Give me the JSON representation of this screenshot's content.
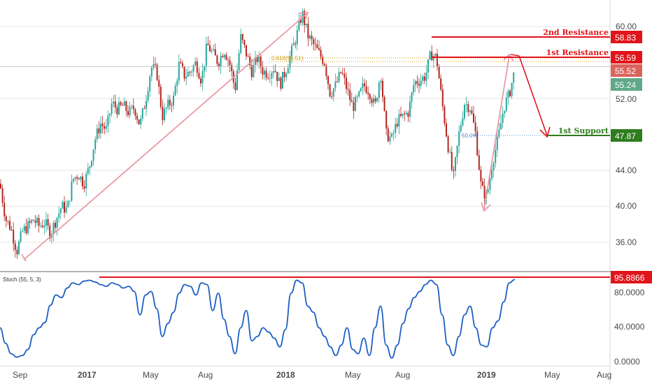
{
  "colors": {
    "up": "#26a69a",
    "down": "#b2251f",
    "resistance": "#e0151b",
    "support": "#2e7d1f",
    "trend": "#e89aa5",
    "stoch": "#1f5fc4",
    "fib618": "#d4a017",
    "fib50": "#5b8fd6",
    "grid": "#e6e6e6"
  },
  "price_axis": {
    "ticks": [
      "60.00",
      "52.00",
      "44.00",
      "40.00",
      "36.00"
    ],
    "badge_current_up": "55.24",
    "badge_current_down": "55.52"
  },
  "stoch_axis": {
    "ticks": [
      "80.0000",
      "40.0000",
      "0.0000"
    ],
    "badge": "95.8866",
    "title": "Stoch (55, 5, 3)"
  },
  "time_axis": {
    "labels": [
      "Sep",
      "2017",
      "May",
      "Aug",
      "2018",
      "May",
      "Aug",
      "2019",
      "May",
      "Aug"
    ]
  },
  "levels": {
    "second_resistance": {
      "label": "2nd Resistance",
      "value": "58.83"
    },
    "first_resistance": {
      "label": "1st Resistance",
      "value": "56.59"
    },
    "first_support": {
      "label": "1st Support",
      "value": "47.87"
    },
    "fib_618": "0.618(56.51)",
    "fib_50": "50.0%"
  },
  "chart_data": {
    "type": "candlestick",
    "subplots": [
      "price",
      "stochastic"
    ],
    "x_labels": [
      "Sep",
      "2017",
      "May",
      "Aug",
      "2018",
      "May",
      "Aug",
      "2019",
      "May",
      "Aug"
    ],
    "price_range": [
      32.5,
      62.5
    ],
    "price_ticks": [
      36.0,
      40.0,
      44.0,
      52.0,
      60.0
    ],
    "close_path": [
      [
        0,
        42.5
      ],
      [
        8,
        38.6
      ],
      [
        16,
        37.5
      ],
      [
        24,
        35.0
      ],
      [
        32,
        37.2
      ],
      [
        40,
        37.8
      ],
      [
        48,
        38.5
      ],
      [
        56,
        37.8
      ],
      [
        64,
        38.2
      ],
      [
        72,
        37.0
      ],
      [
        80,
        38.5
      ],
      [
        88,
        40.0
      ],
      [
        96,
        39.6
      ],
      [
        104,
        43.0
      ],
      [
        112,
        43.6
      ],
      [
        120,
        42.5
      ],
      [
        128,
        44.5
      ],
      [
        136,
        47.5
      ],
      [
        144,
        49.2
      ],
      [
        152,
        48.5
      ],
      [
        160,
        51.5
      ],
      [
        168,
        50.8
      ],
      [
        176,
        51.2
      ],
      [
        184,
        50.4
      ],
      [
        192,
        51.0
      ],
      [
        200,
        49.0
      ],
      [
        208,
        51.8
      ],
      [
        216,
        55.5
      ],
      [
        224,
        55.0
      ],
      [
        232,
        50.0
      ],
      [
        240,
        51.2
      ],
      [
        248,
        52.0
      ],
      [
        256,
        55.8
      ],
      [
        264,
        54.5
      ],
      [
        272,
        55.0
      ],
      [
        280,
        56.0
      ],
      [
        288,
        54.0
      ],
      [
        296,
        58.0
      ],
      [
        304,
        57.0
      ],
      [
        312,
        56.0
      ],
      [
        320,
        57.5
      ],
      [
        328,
        56.0
      ],
      [
        336,
        53.0
      ],
      [
        344,
        58.8
      ],
      [
        352,
        57.0
      ],
      [
        360,
        55.0
      ],
      [
        368,
        56.5
      ],
      [
        376,
        55.0
      ],
      [
        384,
        54.8
      ],
      [
        392,
        55.5
      ],
      [
        400,
        53.5
      ],
      [
        408,
        55.0
      ],
      [
        416,
        57.0
      ],
      [
        424,
        59.0
      ],
      [
        432,
        61.5
      ],
      [
        440,
        59.0
      ],
      [
        448,
        58.0
      ],
      [
        456,
        57.0
      ],
      [
        464,
        56.0
      ],
      [
        472,
        52.5
      ],
      [
        480,
        53.5
      ],
      [
        488,
        55.0
      ],
      [
        496,
        53.0
      ],
      [
        504,
        51.0
      ],
      [
        512,
        52.0
      ],
      [
        520,
        53.5
      ],
      [
        528,
        52.8
      ],
      [
        536,
        51.0
      ],
      [
        544,
        55.0
      ],
      [
        552,
        48.0
      ],
      [
        560,
        47.5
      ],
      [
        568,
        49.5
      ],
      [
        576,
        50.0
      ],
      [
        584,
        50.5
      ],
      [
        592,
        53.8
      ],
      [
        600,
        54.0
      ],
      [
        608,
        54.5
      ],
      [
        616,
        57.0
      ],
      [
        624,
        56.5
      ],
      [
        632,
        51.5
      ],
      [
        640,
        47.0
      ],
      [
        648,
        43.0
      ],
      [
        656,
        48.0
      ],
      [
        664,
        51.5
      ],
      [
        672,
        51.0
      ],
      [
        680,
        48.0
      ],
      [
        688,
        42.0
      ],
      [
        696,
        41.0
      ],
      [
        704,
        45.0
      ],
      [
        712,
        47.5
      ],
      [
        720,
        51.0
      ],
      [
        728,
        52.5
      ],
      [
        736,
        55.24
      ]
    ],
    "stoch_range": [
      0,
      100
    ],
    "stoch_ticks": [
      0,
      40,
      80
    ],
    "stoch_path": [
      [
        0,
        40
      ],
      [
        8,
        22
      ],
      [
        16,
        10
      ],
      [
        24,
        6
      ],
      [
        32,
        8
      ],
      [
        40,
        15
      ],
      [
        48,
        32
      ],
      [
        56,
        40
      ],
      [
        64,
        46
      ],
      [
        72,
        66
      ],
      [
        80,
        78
      ],
      [
        88,
        75
      ],
      [
        96,
        86
      ],
      [
        104,
        92
      ],
      [
        112,
        90
      ],
      [
        120,
        94
      ],
      [
        128,
        95
      ],
      [
        136,
        93
      ],
      [
        144,
        90
      ],
      [
        152,
        88
      ],
      [
        160,
        92
      ],
      [
        168,
        90
      ],
      [
        176,
        86
      ],
      [
        184,
        88
      ],
      [
        192,
        82
      ],
      [
        200,
        55
      ],
      [
        208,
        78
      ],
      [
        216,
        82
      ],
      [
        224,
        62
      ],
      [
        232,
        30
      ],
      [
        240,
        45
      ],
      [
        248,
        58
      ],
      [
        256,
        80
      ],
      [
        264,
        90
      ],
      [
        272,
        88
      ],
      [
        280,
        78
      ],
      [
        288,
        92
      ],
      [
        296,
        90
      ],
      [
        304,
        60
      ],
      [
        312,
        80
      ],
      [
        320,
        50
      ],
      [
        328,
        30
      ],
      [
        336,
        10
      ],
      [
        344,
        40
      ],
      [
        352,
        60
      ],
      [
        360,
        25
      ],
      [
        368,
        30
      ],
      [
        376,
        40
      ],
      [
        384,
        35
      ],
      [
        392,
        28
      ],
      [
        400,
        18
      ],
      [
        408,
        38
      ],
      [
        416,
        80
      ],
      [
        424,
        95
      ],
      [
        432,
        92
      ],
      [
        440,
        65
      ],
      [
        448,
        58
      ],
      [
        456,
        40
      ],
      [
        464,
        30
      ],
      [
        472,
        18
      ],
      [
        480,
        8
      ],
      [
        488,
        20
      ],
      [
        496,
        40
      ],
      [
        504,
        15
      ],
      [
        512,
        10
      ],
      [
        520,
        28
      ],
      [
        528,
        8
      ],
      [
        536,
        40
      ],
      [
        544,
        65
      ],
      [
        552,
        20
      ],
      [
        560,
        5
      ],
      [
        568,
        20
      ],
      [
        576,
        45
      ],
      [
        584,
        62
      ],
      [
        592,
        75
      ],
      [
        600,
        82
      ],
      [
        608,
        90
      ],
      [
        616,
        95
      ],
      [
        624,
        90
      ],
      [
        632,
        55
      ],
      [
        640,
        20
      ],
      [
        648,
        8
      ],
      [
        656,
        30
      ],
      [
        664,
        55
      ],
      [
        672,
        65
      ],
      [
        680,
        40
      ],
      [
        688,
        20
      ],
      [
        696,
        18
      ],
      [
        704,
        40
      ],
      [
        712,
        48
      ],
      [
        720,
        70
      ],
      [
        728,
        92
      ],
      [
        736,
        95.8866
      ]
    ]
  }
}
